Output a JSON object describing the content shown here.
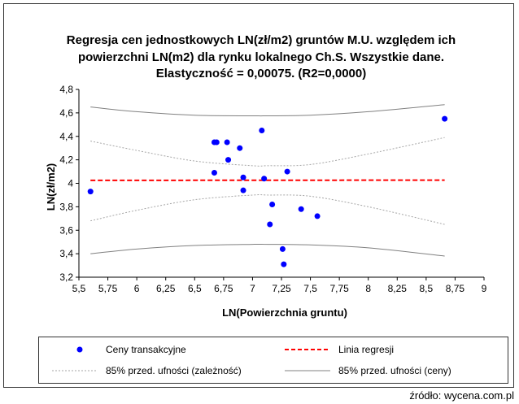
{
  "chart_data": {
    "type": "scatter",
    "title": [
      "Regresja cen jednostkowych LN(zł/m2) gruntów M.U. względem ich",
      "powierzchni LN(m2) dla rynku lokalnego Ch.S. Wszystkie dane.",
      "Elastyczność = 0,00075. (R2=0,0000)"
    ],
    "xlabel": "LN(Powierzchnia gruntu)",
    "ylabel": "LN(zł/m2)",
    "xlim": [
      5.5,
      9
    ],
    "ylim": [
      3.2,
      4.8
    ],
    "x_ticks": [
      5.5,
      5.75,
      6,
      6.25,
      6.5,
      6.75,
      7,
      7.25,
      7.5,
      7.75,
      8,
      8.25,
      8.5,
      8.75,
      9
    ],
    "x_tick_labels": [
      "5,5",
      "5,75",
      "6",
      "6,25",
      "6,5",
      "6,75",
      "7",
      "7,25",
      "7,5",
      "7,75",
      "8",
      "8,25",
      "8,5",
      "8,75",
      "9"
    ],
    "y_ticks": [
      3.2,
      3.4,
      3.6,
      3.8,
      4.0,
      4.2,
      4.4,
      4.6,
      4.8
    ],
    "y_tick_labels": [
      "3,2",
      "3,4",
      "3,6",
      "3,8",
      "4",
      "4,2",
      "4,4",
      "4,6",
      "4,8"
    ],
    "points": [
      {
        "x": 5.6,
        "y": 3.93
      },
      {
        "x": 6.67,
        "y": 4.35
      },
      {
        "x": 6.69,
        "y": 4.35
      },
      {
        "x": 6.78,
        "y": 4.35
      },
      {
        "x": 6.79,
        "y": 4.2
      },
      {
        "x": 6.67,
        "y": 4.09
      },
      {
        "x": 6.89,
        "y": 4.3
      },
      {
        "x": 6.92,
        "y": 4.05
      },
      {
        "x": 6.92,
        "y": 3.94
      },
      {
        "x": 7.08,
        "y": 4.45
      },
      {
        "x": 7.1,
        "y": 4.04
      },
      {
        "x": 7.15,
        "y": 3.65
      },
      {
        "x": 7.17,
        "y": 3.82
      },
      {
        "x": 7.26,
        "y": 3.44
      },
      {
        "x": 7.27,
        "y": 3.31
      },
      {
        "x": 7.3,
        "y": 4.1
      },
      {
        "x": 7.42,
        "y": 3.78
      },
      {
        "x": 7.56,
        "y": 3.72
      },
      {
        "x": 8.66,
        "y": 4.55
      }
    ],
    "regression_line": {
      "x": [
        5.6,
        8.66
      ],
      "y": [
        4.025,
        4.027
      ]
    },
    "conf_band_dependence": {
      "x": [
        5.6,
        6.0,
        6.5,
        7.0,
        7.13,
        7.5,
        8.0,
        8.66
      ],
      "upper": [
        4.36,
        4.28,
        4.19,
        4.15,
        4.15,
        4.16,
        4.25,
        4.39
      ],
      "lower": [
        3.68,
        3.77,
        3.86,
        3.9,
        3.9,
        3.89,
        3.8,
        3.65
      ]
    },
    "conf_band_prices": {
      "x": [
        5.6,
        6.0,
        6.5,
        7.0,
        7.13,
        7.5,
        8.0,
        8.66
      ],
      "upper": [
        4.65,
        4.61,
        4.58,
        4.575,
        4.575,
        4.58,
        4.61,
        4.67
      ],
      "lower": [
        3.4,
        3.44,
        3.47,
        3.48,
        3.48,
        3.475,
        3.45,
        3.38
      ]
    },
    "legend": {
      "points": "Ceny transakcyjne",
      "regression": "Linia regresji",
      "band_dependence": "85% przed. ufności (zależność)",
      "band_prices": "85% przed. ufności (ceny)"
    },
    "colors": {
      "points": "#0000ff",
      "regression": "#ff0000",
      "band_dependence": "#a6a6a6",
      "band_prices": "#808080"
    }
  },
  "source_label": "źródło: wycena.com.pl"
}
